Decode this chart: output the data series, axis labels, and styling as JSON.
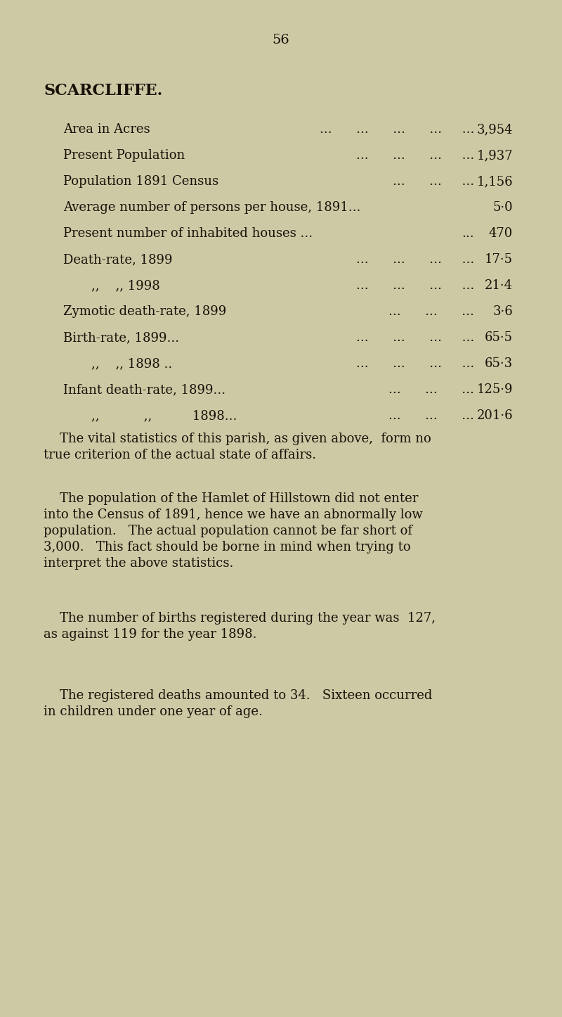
{
  "bg_color": "#cdc9a5",
  "text_color": "#1a1008",
  "page_number": "56",
  "title": "SCARCLIFFE.",
  "stats": [
    {
      "label": "Area in Acres",
      "indent": false,
      "dots_mid": "...      ...      ...      ...     ...",
      "value": "3,954"
    },
    {
      "label": "Present Population",
      "indent": false,
      "dots_mid": "...      ...      ...     ...",
      "value": "1,937"
    },
    {
      "label": "Population 1891 Census",
      "indent": false,
      "dots_mid": "...      ...     ...",
      "value": "1,156"
    },
    {
      "label": "Average number of persons per house, 1891...",
      "indent": false,
      "dots_mid": "",
      "value": "5·0"
    },
    {
      "label": "Present number of inhabited houses ...",
      "indent": false,
      "dots_mid": "...",
      "value": "470"
    },
    {
      "label": "Death-rate, 1899",
      "indent": false,
      "dots_mid": "...      ...      ...     ...",
      "value": "17·5"
    },
    {
      "label": ",,    ,, 1998",
      "indent": true,
      "dots_mid": "...      ...      ...     ...",
      "value": "21·4"
    },
    {
      "label": "Zymotic death-rate, 1899",
      "indent": false,
      "dots_mid": "...      ...      ...",
      "value": "3·6"
    },
    {
      "label": "Birth-rate, 1899...",
      "indent": false,
      "dots_mid": "...      ...      ...     ...",
      "value": "65·5"
    },
    {
      "label": ",,    ,, 1898 ..",
      "indent": true,
      "dots_mid": "...      ...      ...     ...",
      "value": "65·3"
    },
    {
      "label": "Infant death-rate, 1899...",
      "indent": false,
      "dots_mid": "...      ...      ...",
      "value": "125·9"
    },
    {
      "label": ",,           ,,          1898...",
      "indent": true,
      "dots_mid": "...      ...      ...",
      "value": "201·6"
    }
  ],
  "para1_lines": [
    "    The vital statistics of this parish, as given above,  form no",
    "true criterion of the actual state of affairs."
  ],
  "para2_lines": [
    "    The population of the Hamlet of Hillstown did not enter",
    "into the Census of 1891, hence we have an abnormally low",
    "population.   The actual population cannot be far short of",
    "3,000.   This fact should be borne in mind when trying to",
    "interpret the above statistics."
  ],
  "para3_lines": [
    "    The number of births registered during the year was  127,",
    "as against 119 for the year 1898."
  ],
  "para4_lines": [
    "    The registered deaths amounted to 34.   Sixteen occurred",
    "in children under one year of age."
  ],
  "font_size_page_num": 14,
  "font_size_title": 16,
  "font_size_stats": 13,
  "font_size_para": 13
}
